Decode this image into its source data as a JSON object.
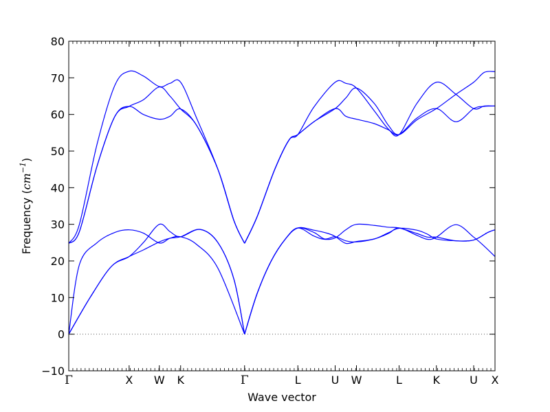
{
  "chart_data": {
    "type": "line",
    "title": "",
    "xlabel": "Wave vector",
    "ylabel": {
      "prefix": "Frequency (",
      "unit_base": "cm",
      "unit_exp": "−1",
      "suffix": ")"
    },
    "ylim": [
      -10,
      80
    ],
    "yticks": [
      -10,
      0,
      10,
      20,
      30,
      40,
      50,
      60,
      70,
      80
    ],
    "ytick_labels": [
      "−10",
      "0",
      "10",
      "20",
      "30",
      "40",
      "50",
      "60",
      "70",
      "80"
    ],
    "xlim": [
      0,
      12.0
    ],
    "high_symmetry_points": [
      {
        "label": "Γ",
        "x": 0.0
      },
      {
        "label": "X",
        "x": 1.7
      },
      {
        "label": "W",
        "x": 2.55
      },
      {
        "label": "K",
        "x": 3.15
      },
      {
        "label": "Γ",
        "x": 4.95
      },
      {
        "label": "L",
        "x": 6.45
      },
      {
        "label": "U",
        "x": 7.5
      },
      {
        "label": "W",
        "x": 8.1
      },
      {
        "label": "L",
        "x": 9.3
      },
      {
        "label": "K",
        "x": 10.35
      },
      {
        "label": "U",
        "x": 11.4
      },
      {
        "label": "X",
        "x": 12.0
      }
    ],
    "zero_line": {
      "y": 0,
      "style": "dotted"
    },
    "grid": false,
    "legend": "none",
    "color": "#0000ff",
    "series": [
      {
        "segments": [
          [
            [
              0,
              0
            ],
            [
              0.3,
              19
            ],
            [
              0.8,
              25
            ],
            [
              1.3,
              27.8
            ],
            [
              1.7,
              28.5
            ],
            [
              2.1,
              27.6
            ],
            [
              2.55,
              24.9
            ],
            [
              2.85,
              26.2
            ],
            [
              3.15,
              26.6
            ],
            [
              3.6,
              24.5
            ],
            [
              4.2,
              18
            ],
            [
              4.95,
              0
            ]
          ],
          [
            [
              4.95,
              0
            ],
            [
              5.3,
              11
            ],
            [
              5.7,
              20
            ],
            [
              6.1,
              26
            ],
            [
              6.45,
              29
            ],
            [
              6.9,
              27.8
            ],
            [
              7.2,
              26
            ],
            [
              7.5,
              26.6
            ],
            [
              7.8,
              25.5
            ],
            [
              8.1,
              25.2
            ],
            [
              8.6,
              26
            ],
            [
              9.0,
              27.5
            ],
            [
              9.3,
              29
            ],
            [
              9.8,
              27
            ],
            [
              10.1,
              25.9
            ],
            [
              10.35,
              26.5
            ],
            [
              10.9,
              29.9
            ],
            [
              11.4,
              26.5
            ],
            [
              11.7,
              24
            ],
            [
              12.0,
              21.2
            ]
          ]
        ]
      },
      {
        "segments": [
          [
            [
              0,
              0
            ],
            [
              0.6,
              10
            ],
            [
              1.2,
              18.5
            ],
            [
              1.7,
              21.2
            ],
            [
              2.1,
              23
            ],
            [
              2.55,
              25.2
            ],
            [
              2.85,
              26.2
            ],
            [
              3.15,
              26.6
            ],
            [
              3.7,
              28.6
            ],
            [
              4.2,
              25
            ],
            [
              4.65,
              15
            ],
            [
              4.95,
              0
            ]
          ],
          [
            [
              4.95,
              0
            ],
            [
              5.3,
              11
            ],
            [
              5.7,
              20
            ],
            [
              6.1,
              26
            ],
            [
              6.45,
              29
            ],
            [
              6.9,
              28.4
            ],
            [
              7.3,
              27.5
            ],
            [
              7.5,
              26.7
            ],
            [
              7.8,
              24.8
            ],
            [
              8.1,
              25.3
            ],
            [
              8.6,
              26
            ],
            [
              9.0,
              27.7
            ],
            [
              9.3,
              28.9
            ],
            [
              9.8,
              28.4
            ],
            [
              10.1,
              27.3
            ],
            [
              10.35,
              26
            ],
            [
              10.9,
              25.5
            ],
            [
              11.4,
              25.7
            ],
            [
              11.8,
              27.8
            ],
            [
              12.0,
              28.5
            ]
          ]
        ]
      },
      {
        "segments": [
          [
            [
              0,
              0
            ],
            [
              0.6,
              10
            ],
            [
              1.2,
              18.5
            ],
            [
              1.7,
              21.2
            ],
            [
              2.1,
              25
            ],
            [
              2.55,
              30
            ],
            [
              2.85,
              28
            ],
            [
              3.15,
              26.6
            ],
            [
              3.7,
              28.6
            ],
            [
              4.2,
              25
            ],
            [
              4.65,
              15
            ],
            [
              4.95,
              0
            ]
          ],
          [
            [
              4.95,
              0
            ],
            [
              5.3,
              11
            ],
            [
              5.7,
              20
            ],
            [
              6.1,
              26
            ],
            [
              6.45,
              29
            ],
            [
              6.9,
              26.8
            ],
            [
              7.2,
              25.9
            ],
            [
              7.5,
              26.3
            ],
            [
              7.8,
              28.5
            ],
            [
              8.1,
              30
            ],
            [
              8.6,
              29.7
            ],
            [
              9.0,
              29.2
            ],
            [
              9.3,
              29
            ],
            [
              9.8,
              27.5
            ],
            [
              10.1,
              26.5
            ],
            [
              10.35,
              26.5
            ],
            [
              10.9,
              25.5
            ],
            [
              11.4,
              25.7
            ],
            [
              11.8,
              27.8
            ],
            [
              12.0,
              28.5
            ]
          ]
        ]
      },
      {
        "segments": [
          [
            [
              0,
              24.8
            ],
            [
              0.3,
              28
            ],
            [
              0.8,
              46
            ],
            [
              1.3,
              59.5
            ],
            [
              1.7,
              62.2
            ],
            [
              2.1,
              60
            ],
            [
              2.55,
              58.7
            ],
            [
              2.85,
              59.5
            ],
            [
              3.15,
              61.5
            ],
            [
              3.6,
              57
            ],
            [
              4.2,
              45
            ],
            [
              4.65,
              31
            ],
            [
              4.95,
              24.8
            ]
          ],
          [
            [
              4.95,
              24.8
            ],
            [
              5.3,
              32
            ],
            [
              5.8,
              45
            ],
            [
              6.2,
              53
            ],
            [
              6.45,
              54.5
            ],
            [
              6.9,
              58
            ],
            [
              7.5,
              61.6
            ],
            [
              7.8,
              59.5
            ],
            [
              8.1,
              58.7
            ],
            [
              8.6,
              57.5
            ],
            [
              9.0,
              55.8
            ],
            [
              9.3,
              54.5
            ],
            [
              9.8,
              59
            ],
            [
              10.35,
              61.6
            ],
            [
              10.9,
              58
            ],
            [
              11.4,
              61.6
            ],
            [
              11.7,
              62.2
            ],
            [
              12.0,
              62.3
            ]
          ]
        ]
      },
      {
        "segments": [
          [
            [
              0,
              24.8
            ],
            [
              0.3,
              28
            ],
            [
              0.8,
              46
            ],
            [
              1.3,
              59.5
            ],
            [
              1.7,
              62.2
            ],
            [
              2.1,
              64
            ],
            [
              2.55,
              67.5
            ],
            [
              2.85,
              65
            ],
            [
              3.15,
              61.5
            ],
            [
              3.6,
              57
            ],
            [
              4.2,
              45
            ],
            [
              4.65,
              31
            ],
            [
              4.95,
              24.8
            ]
          ],
          [
            [
              4.95,
              24.8
            ],
            [
              5.3,
              32
            ],
            [
              5.8,
              45
            ],
            [
              6.2,
              53
            ],
            [
              6.45,
              54.5
            ],
            [
              6.9,
              58
            ],
            [
              7.5,
              61.6
            ],
            [
              7.8,
              64.5
            ],
            [
              8.1,
              67.2
            ],
            [
              8.6,
              63
            ],
            [
              9.0,
              57
            ],
            [
              9.3,
              54.5
            ],
            [
              9.8,
              58.5
            ],
            [
              10.35,
              61.6
            ],
            [
              10.9,
              65.5
            ],
            [
              11.4,
              68.8
            ],
            [
              11.7,
              71.5
            ],
            [
              12.0,
              71.7
            ]
          ]
        ]
      },
      {
        "segments": [
          [
            [
              0,
              24.8
            ],
            [
              0.3,
              30
            ],
            [
              0.8,
              52
            ],
            [
              1.3,
              68
            ],
            [
              1.7,
              71.8
            ],
            [
              2.1,
              70.5
            ],
            [
              2.55,
              67.6
            ],
            [
              2.85,
              68.5
            ],
            [
              3.15,
              68.8
            ],
            [
              3.6,
              59
            ],
            [
              4.2,
              45
            ],
            [
              4.65,
              31
            ],
            [
              4.95,
              24.8
            ]
          ],
          [
            [
              4.95,
              24.8
            ],
            [
              5.3,
              32
            ],
            [
              5.8,
              45
            ],
            [
              6.2,
              53
            ],
            [
              6.45,
              54.5
            ],
            [
              6.9,
              62
            ],
            [
              7.5,
              68.8
            ],
            [
              7.8,
              68.5
            ],
            [
              8.1,
              67.2
            ],
            [
              8.6,
              61
            ],
            [
              9.0,
              56
            ],
            [
              9.3,
              54.5
            ],
            [
              9.8,
              63
            ],
            [
              10.35,
              68.8
            ],
            [
              10.9,
              65.5
            ],
            [
              11.4,
              61.6
            ],
            [
              11.7,
              62.3
            ],
            [
              12.0,
              62.3
            ]
          ]
        ]
      }
    ]
  }
}
